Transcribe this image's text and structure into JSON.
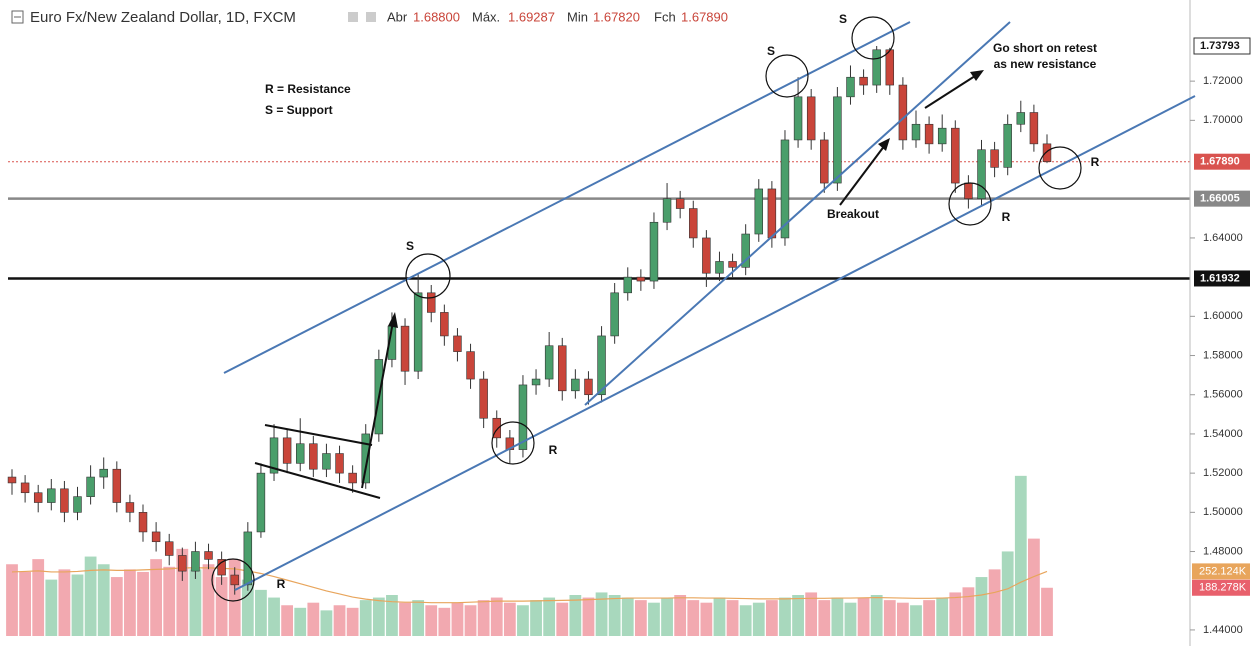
{
  "header": {
    "symbol": "Euro Fx/New Zealand Dollar, 1D, FXCM",
    "open_label": "Abr",
    "open": "1.68800",
    "high_label": "Máx.",
    "high": "1.69287",
    "low_label": "Min",
    "low": "1.67820",
    "close_label": "Fch",
    "close": "1.67890"
  },
  "chart_data": {
    "type": "candlestick",
    "up_color": "#4a9e6b",
    "down_color": "#c9453a",
    "ylim": [
      1.4318,
      1.7614
    ],
    "yticks": [
      {
        "value": 1.44,
        "label": "1.44000"
      },
      {
        "value": 1.48,
        "label": "1.48000"
      },
      {
        "value": 1.5,
        "label": "1.50000"
      },
      {
        "value": 1.52,
        "label": "1.52000"
      },
      {
        "value": 1.54,
        "label": "1.54000"
      },
      {
        "value": 1.56,
        "label": "1.56000"
      },
      {
        "value": 1.58,
        "label": "1.58000"
      },
      {
        "value": 1.6,
        "label": "1.60000"
      },
      {
        "value": 1.64,
        "label": "1.64000"
      },
      {
        "value": 1.7,
        "label": "1.70000"
      },
      {
        "value": 1.72,
        "label": "1.72000"
      }
    ],
    "levels": [
      {
        "value": 1.73793,
        "label": "1.73793",
        "color": "#ffffff",
        "line": "none"
      },
      {
        "value": 1.6789,
        "label": "1.67890",
        "color": "#d9534f",
        "line": "dotted"
      },
      {
        "value": 1.66005,
        "label": "1.66005",
        "color": "#888888",
        "line": "solid"
      },
      {
        "value": 1.61932,
        "label": "1.61932",
        "color": "#111111",
        "line": "solid"
      }
    ],
    "ohlc": [
      [
        1.518,
        1.522,
        1.509,
        1.515
      ],
      [
        1.515,
        1.519,
        1.505,
        1.51
      ],
      [
        1.51,
        1.514,
        1.5,
        1.505
      ],
      [
        1.505,
        1.517,
        1.501,
        1.512
      ],
      [
        1.512,
        1.516,
        1.495,
        1.5
      ],
      [
        1.5,
        1.513,
        1.496,
        1.508
      ],
      [
        1.508,
        1.524,
        1.504,
        1.518
      ],
      [
        1.518,
        1.528,
        1.512,
        1.522
      ],
      [
        1.522,
        1.526,
        1.5,
        1.505
      ],
      [
        1.505,
        1.509,
        1.495,
        1.5
      ],
      [
        1.5,
        1.504,
        1.485,
        1.49
      ],
      [
        1.49,
        1.495,
        1.48,
        1.485
      ],
      [
        1.485,
        1.489,
        1.473,
        1.478
      ],
      [
        1.478,
        1.482,
        1.465,
        1.47
      ],
      [
        1.47,
        1.485,
        1.466,
        1.48
      ],
      [
        1.48,
        1.484,
        1.471,
        1.476
      ],
      [
        1.476,
        1.48,
        1.463,
        1.468
      ],
      [
        1.468,
        1.472,
        1.458,
        1.463
      ],
      [
        1.463,
        1.495,
        1.46,
        1.49
      ],
      [
        1.49,
        1.525,
        1.487,
        1.52
      ],
      [
        1.52,
        1.545,
        1.516,
        1.538
      ],
      [
        1.538,
        1.542,
        1.52,
        1.525
      ],
      [
        1.525,
        1.548,
        1.521,
        1.535
      ],
      [
        1.535,
        1.539,
        1.518,
        1.522
      ],
      [
        1.522,
        1.535,
        1.518,
        1.53
      ],
      [
        1.53,
        1.534,
        1.515,
        1.52
      ],
      [
        1.52,
        1.524,
        1.51,
        1.515
      ],
      [
        1.515,
        1.545,
        1.512,
        1.54
      ],
      [
        1.54,
        1.583,
        1.536,
        1.578
      ],
      [
        1.578,
        1.602,
        1.574,
        1.595
      ],
      [
        1.595,
        1.599,
        1.565,
        1.572
      ],
      [
        1.572,
        1.622,
        1.568,
        1.612
      ],
      [
        1.612,
        1.616,
        1.597,
        1.602
      ],
      [
        1.602,
        1.606,
        1.585,
        1.59
      ],
      [
        1.59,
        1.594,
        1.577,
        1.582
      ],
      [
        1.582,
        1.586,
        1.563,
        1.568
      ],
      [
        1.568,
        1.572,
        1.543,
        1.548
      ],
      [
        1.548,
        1.552,
        1.533,
        1.538
      ],
      [
        1.538,
        1.542,
        1.525,
        1.532
      ],
      [
        1.532,
        1.57,
        1.528,
        1.565
      ],
      [
        1.565,
        1.573,
        1.56,
        1.568
      ],
      [
        1.568,
        1.592,
        1.564,
        1.585
      ],
      [
        1.585,
        1.589,
        1.557,
        1.562
      ],
      [
        1.562,
        1.573,
        1.558,
        1.568
      ],
      [
        1.568,
        1.572,
        1.555,
        1.56
      ],
      [
        1.56,
        1.595,
        1.556,
        1.59
      ],
      [
        1.59,
        1.617,
        1.586,
        1.612
      ],
      [
        1.612,
        1.625,
        1.608,
        1.62
      ],
      [
        1.62,
        1.624,
        1.613,
        1.618
      ],
      [
        1.618,
        1.653,
        1.614,
        1.648
      ],
      [
        1.648,
        1.668,
        1.644,
        1.66
      ],
      [
        1.66,
        1.664,
        1.65,
        1.655
      ],
      [
        1.655,
        1.659,
        1.635,
        1.64
      ],
      [
        1.64,
        1.644,
        1.615,
        1.622
      ],
      [
        1.622,
        1.633,
        1.618,
        1.628
      ],
      [
        1.628,
        1.632,
        1.62,
        1.625
      ],
      [
        1.625,
        1.647,
        1.621,
        1.642
      ],
      [
        1.642,
        1.67,
        1.638,
        1.665
      ],
      [
        1.665,
        1.669,
        1.635,
        1.64
      ],
      [
        1.64,
        1.695,
        1.636,
        1.69
      ],
      [
        1.69,
        1.722,
        1.686,
        1.712
      ],
      [
        1.712,
        1.716,
        1.685,
        1.69
      ],
      [
        1.69,
        1.694,
        1.663,
        1.668
      ],
      [
        1.668,
        1.717,
        1.664,
        1.712
      ],
      [
        1.712,
        1.728,
        1.708,
        1.722
      ],
      [
        1.722,
        1.726,
        1.713,
        1.718
      ],
      [
        1.718,
        1.73793,
        1.714,
        1.736
      ],
      [
        1.736,
        1.737,
        1.713,
        1.718
      ],
      [
        1.718,
        1.722,
        1.685,
        1.69
      ],
      [
        1.69,
        1.705,
        1.686,
        1.698
      ],
      [
        1.698,
        1.702,
        1.683,
        1.688
      ],
      [
        1.688,
        1.703,
        1.684,
        1.696
      ],
      [
        1.696,
        1.7,
        1.663,
        1.668
      ],
      [
        1.668,
        1.672,
        1.655,
        1.66
      ],
      [
        1.66,
        1.69,
        1.656,
        1.685
      ],
      [
        1.685,
        1.689,
        1.671,
        1.676
      ],
      [
        1.676,
        1.703,
        1.672,
        1.698
      ],
      [
        1.698,
        1.71,
        1.694,
        1.704
      ],
      [
        1.704,
        1.708,
        1.684,
        1.688
      ],
      [
        1.688,
        1.69287,
        1.6782,
        1.6789
      ]
    ],
    "volume": {
      "lim": [
        0,
        800
      ],
      "up_color": "#a8d8bd",
      "down_color": "#f2a9b0",
      "values": [
        280,
        250,
        300,
        220,
        260,
        240,
        310,
        280,
        230,
        260,
        250,
        300,
        270,
        340,
        260,
        280,
        230,
        300,
        220,
        180,
        150,
        120,
        110,
        130,
        100,
        120,
        110,
        140,
        150,
        160,
        130,
        140,
        120,
        110,
        130,
        120,
        140,
        150,
        130,
        120,
        140,
        150,
        130,
        160,
        150,
        170,
        160,
        150,
        140,
        130,
        150,
        160,
        140,
        130,
        150,
        140,
        120,
        130,
        140,
        150,
        160,
        170,
        140,
        150,
        130,
        150,
        160,
        140,
        130,
        120,
        140,
        150,
        170,
        190,
        230,
        260,
        330,
        625,
        380,
        188.278
      ],
      "last_label": "188.278K",
      "last_color": "#e8606c",
      "ma": {
        "color": "#e8a55c",
        "last_label": "252.124K",
        "values": [
          250,
          252,
          254,
          250,
          250,
          252,
          256,
          258,
          256,
          256,
          258,
          260,
          262,
          266,
          266,
          266,
          264,
          262,
          254,
          244,
          232,
          218,
          204,
          190,
          176,
          164,
          152,
          144,
          138,
          134,
          132,
          132,
          130,
          130,
          130,
          132,
          134,
          136,
          136,
          136,
          137,
          138,
          139,
          140,
          142,
          144,
          146,
          148,
          148,
          148,
          148,
          149,
          149,
          148,
          148,
          147,
          146,
          145,
          145,
          145,
          146,
          147,
          147,
          148,
          148,
          149,
          150,
          149,
          148,
          147,
          147,
          148,
          150,
          154,
          160,
          170,
          184,
          210,
          232,
          252.124
        ]
      }
    },
    "annotations": [
      "R = Resistance",
      "S = Support",
      "S",
      "S",
      "S",
      "R",
      "R",
      "R",
      "R",
      "Breakout",
      "Go short on retest",
      "as new resistance"
    ]
  }
}
